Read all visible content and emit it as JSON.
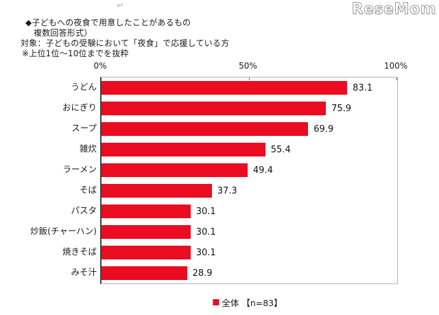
{
  "decorations": {
    "return_mark": "↵"
  },
  "logo": {
    "text": "ReseMom"
  },
  "header": {
    "line1": "◆子どもへの夜食で用意したことがあるもの",
    "line2": "複数回答形式）",
    "line3": "対象：子どもの受験において「夜食」で応援している方",
    "line4": "※上位1位～10位までを抜粋"
  },
  "legend": {
    "swatch_color": "#ea0c20",
    "label": "全体 【n=83】"
  },
  "chart_data": {
    "type": "bar",
    "orientation": "horizontal",
    "title": "子どもへの夜食で用意したことがあるもの（複数回答形式）",
    "categories": [
      "うどん",
      "おにぎり",
      "スープ",
      "雑炊",
      "ラーメン",
      "そば",
      "パスタ",
      "炒飯(チャーハン)",
      "焼きそば",
      "みそ汁"
    ],
    "values": [
      83.1,
      75.9,
      69.9,
      55.4,
      49.4,
      37.3,
      30.1,
      30.1,
      30.1,
      28.9
    ],
    "bar_color": "#ea0c20",
    "x_axis": {
      "position": "top",
      "min": 0,
      "max": 100,
      "ticks": [
        "0%",
        "50%",
        "100%"
      ],
      "tick_positions": [
        0,
        50,
        100
      ]
    },
    "grid": false,
    "legend": "全体 【n=83】",
    "legend_position": "bottom"
  }
}
